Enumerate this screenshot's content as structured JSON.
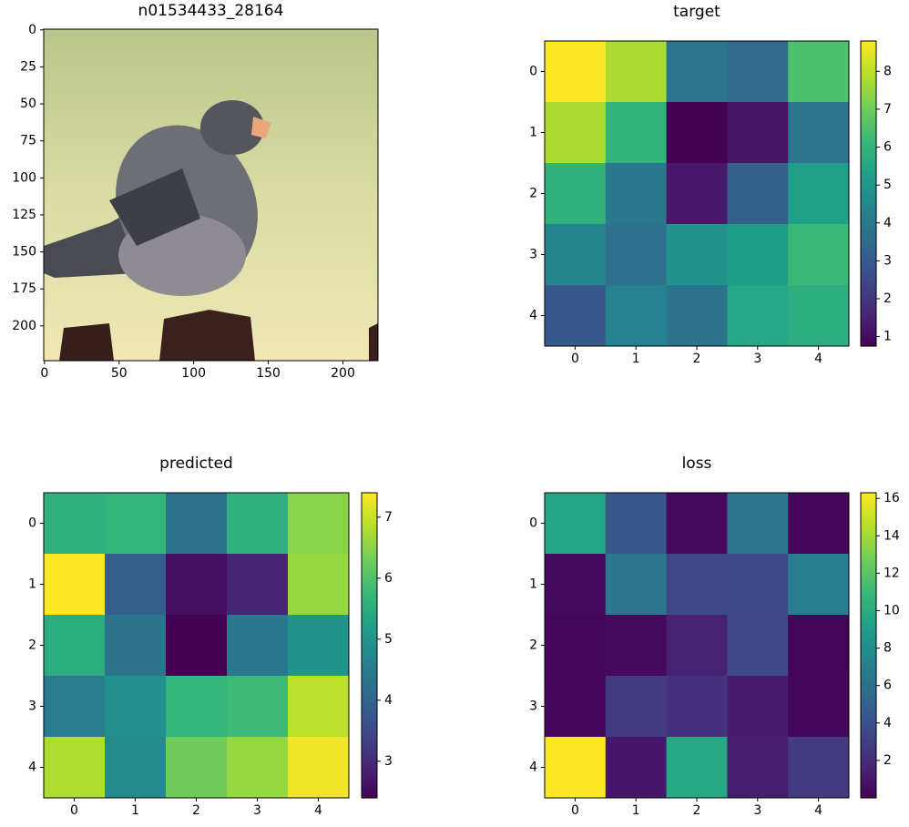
{
  "chart_data": [
    {
      "type": "image",
      "title": "n01534433_28164",
      "xlim": [
        -0.5,
        223.5
      ],
      "ylim": [
        223.5,
        -0.5
      ],
      "xticks": [
        0,
        50,
        100,
        150,
        200
      ],
      "yticks": [
        0,
        25,
        50,
        75,
        100,
        125,
        150,
        175,
        200
      ]
    },
    {
      "type": "heatmap",
      "title": "target",
      "cmap": "viridis",
      "xlim": [
        -0.5,
        4.5
      ],
      "ylim": [
        4.5,
        -0.5
      ],
      "xticks": [
        0,
        1,
        2,
        3,
        4
      ],
      "yticks": [
        0,
        1,
        2,
        3,
        4
      ],
      "z": [
        [
          8.8,
          7.8,
          3.9,
          3.5,
          6.5
        ],
        [
          7.8,
          6.0,
          0.75,
          1.2,
          3.9
        ],
        [
          5.9,
          4.0,
          1.3,
          3.2,
          5.3
        ],
        [
          4.4,
          3.7,
          4.9,
          5.2,
          6.2
        ],
        [
          3.0,
          4.3,
          3.8,
          5.5,
          5.8
        ]
      ],
      "clim": [
        0.75,
        8.8
      ],
      "cticks": [
        1,
        2,
        3,
        4,
        5,
        6,
        7,
        8
      ]
    },
    {
      "type": "heatmap",
      "title": "predicted",
      "cmap": "viridis",
      "xlim": [
        -0.5,
        4.5
      ],
      "ylim": [
        4.5,
        -0.5
      ],
      "xticks": [
        0,
        1,
        2,
        3,
        4
      ],
      "yticks": [
        0,
        1,
        2,
        3,
        4
      ],
      "z": [
        [
          5.6,
          5.7,
          4.3,
          5.6,
          6.5
        ],
        [
          7.4,
          3.9,
          2.6,
          2.9,
          6.6
        ],
        [
          5.5,
          4.3,
          2.4,
          4.4,
          5.0
        ],
        [
          4.5,
          4.9,
          5.7,
          5.8,
          6.9
        ],
        [
          6.8,
          4.8,
          6.3,
          6.6,
          7.3
        ]
      ],
      "clim": [
        2.4,
        7.4
      ],
      "cticks": [
        3,
        4,
        5,
        6,
        7
      ]
    },
    {
      "type": "heatmap",
      "title": "loss",
      "cmap": "viridis",
      "xlim": [
        -0.5,
        4.5
      ],
      "ylim": [
        4.5,
        -0.5
      ],
      "xticks": [
        0,
        1,
        2,
        3,
        4
      ],
      "yticks": [
        0,
        1,
        2,
        3,
        4
      ],
      "z": [
        [
          9.5,
          4.5,
          0.4,
          6.5,
          0.3
        ],
        [
          0.5,
          6.5,
          3.5,
          3.7,
          7.0
        ],
        [
          0.3,
          0.4,
          1.5,
          3.5,
          0.2
        ],
        [
          0.2,
          2.8,
          2.3,
          1.2,
          0.3
        ],
        [
          16.3,
          1.0,
          9.8,
          1.3,
          2.8
        ]
      ],
      "clim": [
        0.0,
        16.3
      ],
      "cticks": [
        2,
        4,
        6,
        8,
        10,
        12,
        14,
        16
      ]
    }
  ]
}
